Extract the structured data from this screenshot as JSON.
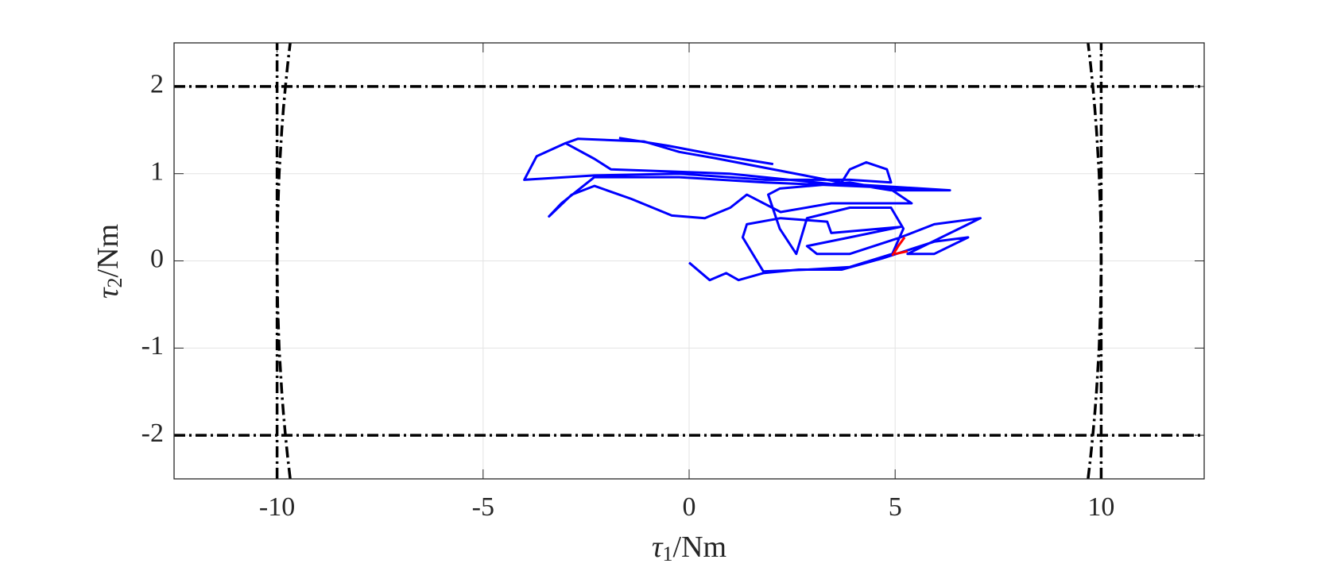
{
  "chart_data": {
    "type": "line",
    "xlabel": {
      "symbol": "τ",
      "subscript": "1",
      "unit": "/Nm"
    },
    "ylabel": {
      "symbol": "τ",
      "subscript": "2",
      "unit": "/Nm"
    },
    "xlim": [
      -12.5,
      12.5
    ],
    "ylim": [
      -2.5,
      2.5
    ],
    "xticks": [
      -10,
      -5,
      0,
      5,
      10
    ],
    "yticks": [
      -2,
      -1,
      0,
      1,
      2
    ],
    "grid": true,
    "series": [
      {
        "color": "#000000",
        "linestyle": "dashdot",
        "x": [
          -12.5,
          12.5
        ],
        "values": [
          2,
          2
        ]
      },
      {
        "color": "#000000",
        "linestyle": "dashdot",
        "x": [
          -12.5,
          12.5
        ],
        "values": [
          -2,
          -2
        ]
      },
      {
        "color": "#000000",
        "linestyle": "dashdot",
        "x": [
          -10,
          -10
        ],
        "values": [
          -2.5,
          2.5
        ]
      },
      {
        "color": "#000000",
        "linestyle": "dashdot",
        "x": [
          10,
          10
        ],
        "values": [
          -2.5,
          2.5
        ]
      },
      {
        "color": "#000000",
        "linestyle": "dashdot",
        "x": [
          -9.682,
          -9.744,
          -9.798,
          -9.846,
          -9.887,
          -9.95,
          -9.987,
          -10,
          -9.987,
          -9.95,
          -9.887,
          -9.846,
          -9.798,
          -9.744,
          -9.682
        ],
        "values": [
          -2.5,
          -2.25,
          -2,
          -1.75,
          -1.5,
          -1,
          -0.5,
          0,
          0.5,
          1,
          1.5,
          1.75,
          2,
          2.25,
          2.5
        ]
      },
      {
        "color": "#000000",
        "linestyle": "dashdot",
        "x": [
          9.682,
          9.744,
          9.798,
          9.846,
          9.887,
          9.95,
          9.987,
          10,
          9.987,
          9.95,
          9.887,
          9.846,
          9.798,
          9.744,
          9.682
        ],
        "values": [
          -2.5,
          -2.25,
          -2,
          -1.75,
          -1.5,
          -1,
          -0.5,
          0,
          0.5,
          1,
          1.5,
          1.75,
          2,
          2.25,
          2.5
        ]
      },
      {
        "color": "#0000ff",
        "linestyle": "solid",
        "x": [
          0,
          0.5,
          0.9,
          1.2,
          1.8,
          2.66,
          3.7,
          4.7,
          5.95,
          6.77,
          5.95,
          5.3,
          6.77,
          7.07,
          5.95,
          5.13,
          3.9,
          3.1,
          2.86,
          3.9,
          5.13,
          3.45,
          3.35,
          2.22,
          1.4,
          1.3,
          1.8,
          2.86,
          3.9,
          4.93,
          5.2,
          4.9,
          3.9,
          2.86,
          2.6,
          2.2,
          1.92,
          2.2,
          3.9,
          4.93,
          5.4,
          3.45,
          2.22,
          1.4,
          1.0,
          0.38,
          -0.42,
          -1.4,
          -2.3,
          -2.85,
          -3.4,
          -3.1,
          -2.3,
          -0.24,
          1.85,
          3.9,
          6.33,
          4.9,
          3.7,
          3.9,
          4.3,
          4.8,
          4.9,
          3.9,
          1.85,
          -0.24,
          -2.3,
          -4.0,
          -3.7,
          -3.0,
          -2.3,
          -1.9,
          0.98,
          3.9,
          6.33,
          3.9,
          0.6,
          -0.24,
          -1.1,
          -2.7,
          -3.0
        ],
        "values": [
          -0.02,
          -0.22,
          -0.14,
          -0.22,
          -0.14,
          -0.1,
          -0.1,
          0.03,
          0.22,
          0.27,
          0.08,
          0.08,
          0.42,
          0.49,
          0.42,
          0.27,
          0.08,
          0.08,
          0.17,
          0.27,
          0.39,
          0.32,
          0.45,
          0.49,
          0.42,
          0.27,
          -0.12,
          -0.1,
          -0.07,
          0.08,
          0.37,
          0.61,
          0.61,
          0.49,
          0.08,
          0.37,
          0.76,
          0.83,
          0.9,
          0.81,
          0.66,
          0.66,
          0.56,
          0.76,
          0.61,
          0.49,
          0.52,
          0.71,
          0.86,
          0.76,
          0.51,
          0.66,
          0.96,
          0.96,
          0.9,
          0.86,
          0.81,
          0.81,
          0.9,
          1.05,
          1.13,
          1.05,
          0.9,
          0.93,
          0.93,
          1.0,
          0.98,
          0.93,
          1.2,
          1.35,
          1.17,
          1.05,
          1.0,
          0.86,
          0.81,
          0.88,
          1.18,
          1.25,
          1.37,
          1.4,
          1.35
        ]
      },
      {
        "color": "#0000ff",
        "linestyle": "solid",
        "x": [
          -1.7,
          -0.5,
          0.6,
          2.04
        ],
        "values": [
          1.41,
          1.32,
          1.22,
          1.11
        ]
      },
      {
        "color": "#ff0000",
        "linestyle": "solid",
        "x": [
          4.93,
          5.09,
          5.23,
          null,
          5.0,
          5.3
        ],
        "values": [
          0.06,
          0.18,
          0.27,
          null,
          0.08,
          0.11
        ]
      }
    ]
  }
}
